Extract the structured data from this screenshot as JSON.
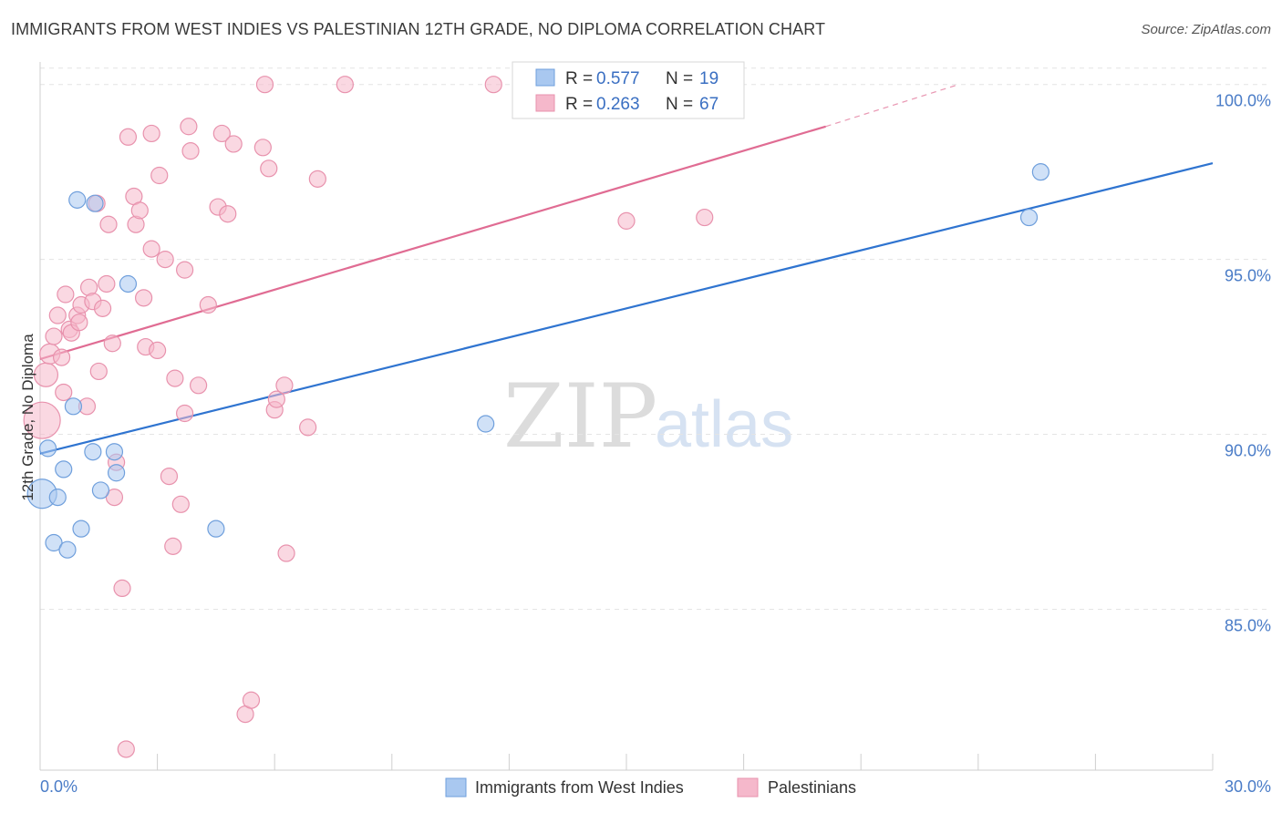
{
  "header": {
    "title": "IMMIGRANTS FROM WEST INDIES VS PALESTINIAN 12TH GRADE, NO DIPLOMA CORRELATION CHART",
    "source": "Source: ZipAtlas.com"
  },
  "watermark": {
    "zip": "ZIP",
    "atlas": "atlas"
  },
  "legend": {
    "rows": [
      {
        "r_label": "R =",
        "r_value": "0.577",
        "n_label": "N =",
        "n_value": "19",
        "color": "#a9c8f0"
      },
      {
        "r_label": "R =",
        "r_value": "0.263",
        "n_label": "N =",
        "n_value": "67",
        "color": "#f5b8cb"
      }
    ]
  },
  "bottom_legend": {
    "series1": "Immigrants from West Indies",
    "series2": "Palestinians"
  },
  "colors": {
    "blue_fill": "#a9c8f0",
    "blue_stroke": "#6f9fdc",
    "blue_line": "#2f74d0",
    "pink_fill": "#f5b8cb",
    "pink_stroke": "#e892ad",
    "pink_line": "#e06c93",
    "tick_text": "#4a7cc7",
    "grid": "#e4e4e4"
  },
  "chart_data": {
    "type": "scatter",
    "title": "IMMIGRANTS FROM WEST INDIES VS PALESTINIAN 12TH GRADE, NO DIPLOMA CORRELATION CHART",
    "xlabel": "",
    "ylabel": "12th Grade, No Diploma",
    "xlim": [
      0,
      30
    ],
    "ylim": [
      80.4,
      100.8
    ],
    "x_tick_labels": [
      "0.0%",
      "30.0%"
    ],
    "y_ticks": [
      85,
      90,
      95,
      100
    ],
    "y_tick_labels": [
      "85.0%",
      "90.0%",
      "95.0%",
      "100.0%"
    ],
    "grid": true,
    "legend_position": "top-center",
    "series": [
      {
        "name": "Immigrants from West Indies",
        "color": "#a9c8f0",
        "r": 0.577,
        "n": 19,
        "trend": {
          "x": [
            0,
            30
          ],
          "y": [
            89.45,
            97.75
          ],
          "dashed_after": null
        },
        "points": [
          [
            0.05,
            88.3,
            16
          ],
          [
            0.2,
            89.6,
            9
          ],
          [
            0.35,
            86.9,
            9
          ],
          [
            0.45,
            88.2,
            9
          ],
          [
            0.6,
            89.0,
            9
          ],
          [
            0.7,
            86.7,
            9
          ],
          [
            0.85,
            90.8,
            9
          ],
          [
            0.95,
            96.7,
            9
          ],
          [
            1.05,
            87.3,
            9
          ],
          [
            1.35,
            89.5,
            9
          ],
          [
            1.4,
            96.6,
            9
          ],
          [
            1.55,
            88.4,
            9
          ],
          [
            1.9,
            89.5,
            9
          ],
          [
            1.95,
            88.9,
            9
          ],
          [
            2.25,
            94.3,
            9
          ],
          [
            4.5,
            87.3,
            9
          ],
          [
            11.4,
            90.3,
            9
          ],
          [
            25.3,
            96.2,
            9
          ],
          [
            25.6,
            97.5,
            9
          ]
        ]
      },
      {
        "name": "Palestinians",
        "color": "#f5b8cb",
        "r": 0.263,
        "n": 67,
        "trend": {
          "x": [
            0,
            20.1,
            23.5
          ],
          "y": [
            92.15,
            98.8,
            100.0
          ],
          "dashed_after": 20.1
        },
        "points": [
          [
            0.05,
            90.4,
            20
          ],
          [
            0.15,
            91.7,
            13
          ],
          [
            0.25,
            92.3,
            11
          ],
          [
            0.35,
            92.8,
            9
          ],
          [
            0.45,
            93.4,
            9
          ],
          [
            0.55,
            92.2,
            9
          ],
          [
            0.6,
            91.2,
            9
          ],
          [
            0.65,
            94.0,
            9
          ],
          [
            0.75,
            93.0,
            9
          ],
          [
            0.8,
            92.9,
            9
          ],
          [
            0.95,
            93.4,
            9
          ],
          [
            1.0,
            93.2,
            9
          ],
          [
            1.05,
            93.7,
            9
          ],
          [
            1.2,
            90.8,
            9
          ],
          [
            1.25,
            94.2,
            9
          ],
          [
            1.35,
            93.8,
            9
          ],
          [
            1.45,
            96.6,
            9
          ],
          [
            1.5,
            91.8,
            9
          ],
          [
            1.6,
            93.6,
            9
          ],
          [
            1.7,
            94.3,
            9
          ],
          [
            1.75,
            96.0,
            9
          ],
          [
            1.85,
            92.6,
            9
          ],
          [
            1.9,
            88.2,
            9
          ],
          [
            1.95,
            89.2,
            9
          ],
          [
            2.1,
            85.6,
            9
          ],
          [
            2.2,
            81.0,
            9
          ],
          [
            2.25,
            98.5,
            9
          ],
          [
            2.4,
            96.8,
            9
          ],
          [
            2.45,
            96.0,
            9
          ],
          [
            2.55,
            96.4,
            9
          ],
          [
            2.65,
            93.9,
            9
          ],
          [
            2.7,
            92.5,
            9
          ],
          [
            2.85,
            98.6,
            9
          ],
          [
            2.85,
            95.3,
            9
          ],
          [
            3.0,
            92.4,
            9
          ],
          [
            3.05,
            97.4,
            9
          ],
          [
            3.2,
            95.0,
            9
          ],
          [
            3.3,
            88.8,
            9
          ],
          [
            3.4,
            86.8,
            9
          ],
          [
            3.45,
            91.6,
            9
          ],
          [
            3.6,
            88.0,
            9
          ],
          [
            3.7,
            94.7,
            9
          ],
          [
            3.7,
            90.6,
            9
          ],
          [
            3.8,
            98.8,
            9
          ],
          [
            3.85,
            98.1,
            9
          ],
          [
            4.05,
            91.4,
            9
          ],
          [
            4.3,
            93.7,
            9
          ],
          [
            4.55,
            96.5,
            9
          ],
          [
            4.65,
            98.6,
            9
          ],
          [
            4.8,
            96.3,
            9
          ],
          [
            4.95,
            98.3,
            9
          ],
          [
            5.25,
            82.0,
            9
          ],
          [
            5.4,
            82.4,
            9
          ],
          [
            5.7,
            98.2,
            9
          ],
          [
            5.75,
            100.0,
            9
          ],
          [
            5.85,
            97.6,
            9
          ],
          [
            6.0,
            90.7,
            9
          ],
          [
            6.05,
            91.0,
            9
          ],
          [
            6.25,
            91.4,
            9
          ],
          [
            6.3,
            86.6,
            9
          ],
          [
            6.85,
            90.2,
            9
          ],
          [
            7.1,
            97.3,
            9
          ],
          [
            7.8,
            100.0,
            9
          ],
          [
            11.6,
            100.0,
            9
          ],
          [
            13.3,
            100.0,
            9
          ],
          [
            15.0,
            96.1,
            9
          ],
          [
            17.0,
            96.2,
            9
          ]
        ]
      }
    ]
  }
}
